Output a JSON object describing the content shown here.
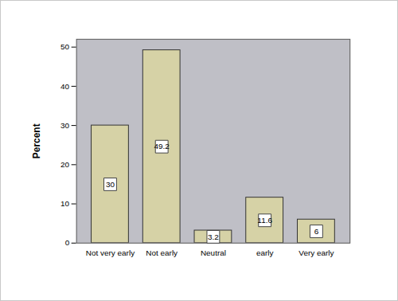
{
  "chart_data": {
    "type": "bar",
    "y_label": "Percent",
    "categories": [
      "Not very early",
      "Not early",
      "Neutral",
      "early",
      "Very early"
    ],
    "values": [
      30,
      49.2,
      3.2,
      11.6,
      6
    ],
    "color": "#d6d2a6",
    "ylim": [
      0,
      52
    ],
    "yticks": [
      0,
      10,
      20,
      30,
      40,
      50
    ],
    "grid": false,
    "data_labels": true
  }
}
